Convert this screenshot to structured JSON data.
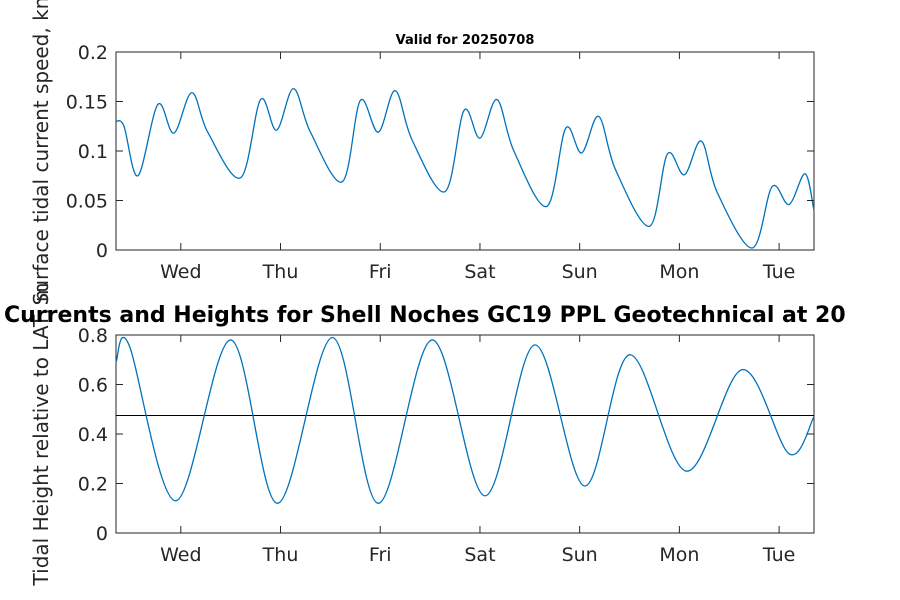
{
  "suptitle": "Currents and Heights for Shell Noches   GC19 PPL  Geotechnical at 20",
  "chart_data": [
    {
      "type": "line",
      "title": "Valid for 20250708",
      "ylabel": "Surface tidal current speed, kn",
      "xlim": [
        0,
        7
      ],
      "ylim": [
        0,
        0.2
      ],
      "yticks": [
        "0",
        "0.05",
        "0.1",
        "0.15",
        "0.2"
      ],
      "xtick_positions": [
        0.65,
        1.65,
        2.65,
        3.65,
        4.65,
        5.65,
        6.65
      ],
      "xticks": [
        "Wed",
        "Thu",
        "Fri",
        "Sat",
        "Sun",
        "Mon",
        "Tue"
      ],
      "series": [
        {
          "color": "#0072BD",
          "x": [
            0,
            0.08,
            0.22,
            0.42,
            0.58,
            0.76,
            0.92,
            1.25,
            1.45,
            1.61,
            1.78,
            1.95,
            2.27,
            2.45,
            2.63,
            2.8,
            2.97,
            3.3,
            3.49,
            3.65,
            3.82,
            3.99,
            4.32,
            4.51,
            4.67,
            4.84,
            5.01,
            5.35,
            5.53,
            5.7,
            5.87,
            6.03,
            6.38,
            6.58,
            6.75,
            6.91,
            7
          ],
          "values": [
            0.13,
            0.125,
            0.075,
            0.147,
            0.118,
            0.159,
            0.119,
            0.073,
            0.152,
            0.121,
            0.163,
            0.119,
            0.069,
            0.151,
            0.119,
            0.161,
            0.111,
            0.059,
            0.141,
            0.113,
            0.152,
            0.1,
            0.044,
            0.123,
            0.098,
            0.135,
            0.081,
            0.024,
            0.097,
            0.076,
            0.11,
            0.058,
            0.002,
            0.064,
            0.046,
            0.077,
            0.04
          ]
        }
      ]
    },
    {
      "type": "line",
      "title": "",
      "ylabel": "Tidal Height relative to LAT, m",
      "xlim": [
        0,
        7
      ],
      "ylim": [
        0,
        0.8
      ],
      "yticks": [
        "0",
        "0.2",
        "0.4",
        "0.6",
        "0.8"
      ],
      "xtick_positions": [
        0.65,
        1.65,
        2.65,
        3.65,
        4.65,
        5.65,
        6.65
      ],
      "xticks": [
        "Wed",
        "Thu",
        "Fri",
        "Sat",
        "Sun",
        "Mon",
        "Tue"
      ],
      "reference_line": 0.475,
      "series": [
        {
          "color": "#0072BD",
          "x": [
            0,
            0.13,
            0.6,
            1.15,
            1.62,
            2.17,
            2.63,
            3.17,
            3.7,
            4.2,
            4.7,
            5.15,
            5.72,
            6.28,
            6.75,
            7
          ],
          "values": [
            0.69,
            0.76,
            0.13,
            0.78,
            0.12,
            0.79,
            0.12,
            0.78,
            0.15,
            0.76,
            0.19,
            0.72,
            0.25,
            0.66,
            0.32,
            0.47
          ]
        }
      ]
    }
  ]
}
